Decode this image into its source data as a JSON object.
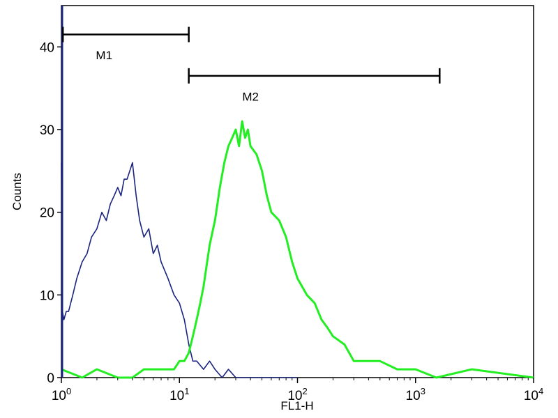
{
  "chart_data": {
    "type": "line",
    "xlabel": "FL1-H",
    "ylabel": "Counts",
    "x_scale": "log",
    "xlim": [
      1,
      10000
    ],
    "ylim": [
      0,
      45
    ],
    "x_ticks": [
      {
        "value": 1,
        "base": "10",
        "exp": "0"
      },
      {
        "value": 10,
        "base": "10",
        "exp": "1"
      },
      {
        "value": 100,
        "base": "10",
        "exp": "2"
      },
      {
        "value": 1000,
        "base": "10",
        "exp": "3"
      },
      {
        "value": 10000,
        "base": "10",
        "exp": "4"
      }
    ],
    "y_ticks": [
      0,
      10,
      20,
      30,
      40
    ],
    "grid": false,
    "colors": {
      "control": "#1a237e",
      "sample": "#22ee22",
      "axis": "#000000"
    },
    "series": [
      {
        "color": "#1a237e",
        "x": [
          1,
          1.02,
          1.05,
          1.1,
          1.15,
          1.25,
          1.35,
          1.5,
          1.65,
          1.8,
          2.0,
          2.2,
          2.4,
          2.6,
          2.8,
          3.0,
          3.2,
          3.4,
          3.6,
          3.8,
          4.0,
          4.3,
          4.6,
          5.0,
          5.5,
          6.0,
          6.5,
          7.0,
          8.0,
          9.0,
          10,
          11,
          12,
          13,
          14,
          16,
          18,
          20,
          23,
          26,
          30,
          40,
          60,
          80,
          100
        ],
        "y": [
          26,
          8,
          7,
          8,
          8,
          10,
          12,
          14,
          15,
          17,
          18,
          20,
          19,
          21,
          22,
          23,
          22,
          24,
          24,
          25,
          26,
          22,
          19,
          17,
          18,
          15,
          16,
          14,
          12,
          10,
          9,
          7,
          4,
          2,
          2,
          1,
          2,
          1,
          0,
          1,
          0,
          0,
          0,
          0,
          0
        ]
      },
      {
        "color": "#22ee22",
        "x": [
          1,
          1.5,
          2,
          3,
          4,
          5,
          6,
          7,
          8,
          9,
          10,
          11,
          12,
          13,
          14,
          15,
          16,
          18,
          20,
          22,
          24,
          26,
          28,
          30,
          32,
          34,
          36,
          38,
          40,
          45,
          50,
          55,
          60,
          70,
          80,
          90,
          100,
          120,
          140,
          160,
          180,
          200,
          250,
          300,
          400,
          500,
          700,
          1000,
          1500,
          3000,
          10000
        ],
        "y": [
          1,
          0,
          1,
          0,
          0,
          1,
          1,
          1,
          1,
          1,
          2,
          2,
          3,
          5,
          7,
          9,
          11,
          16,
          19,
          23,
          26,
          28,
          29,
          30,
          28,
          31,
          29,
          30,
          28,
          27,
          25,
          22,
          20,
          19,
          17,
          14,
          12,
          10,
          9,
          7,
          6,
          5,
          4,
          2,
          2,
          2,
          1,
          1,
          0,
          1,
          0
        ]
      }
    ],
    "markers": [
      {
        "label": "M1",
        "x_start": 1.03,
        "x_end": 12,
        "y": 41.5,
        "label_x": 2.3,
        "label_y": 39
      },
      {
        "label": "M2",
        "x_start": 12,
        "x_end": 1600,
        "y": 36.5,
        "label_x": 40,
        "label_y": 34
      }
    ]
  }
}
